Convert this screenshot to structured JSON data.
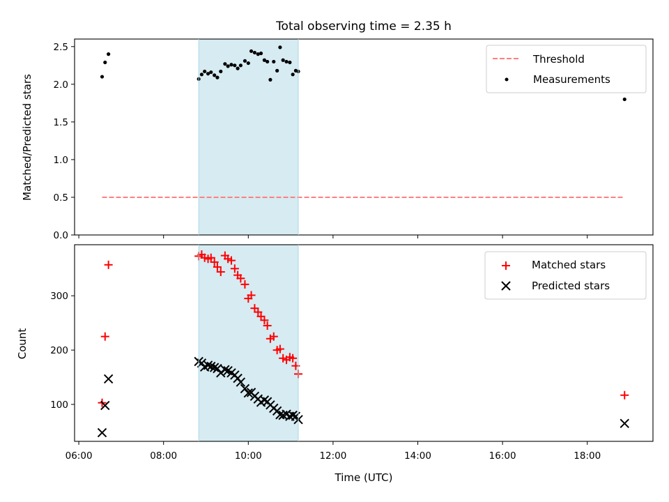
{
  "figure": {
    "title": "Total observing time = 2.35 h",
    "xlabel": "Time (UTC)"
  },
  "chart_data": [
    {
      "type": "scatter",
      "title": "Total observing time = 2.35 h",
      "xlabel": "",
      "ylabel": "Matched/Predicted stars",
      "xlim": [
        5.9,
        19.55
      ],
      "ylim": [
        0,
        2.6
      ],
      "yticks": [
        0,
        0.5,
        1,
        1.5,
        2,
        2.5
      ],
      "ytick_labels": [
        "0.0",
        "0.5",
        "1.0",
        "1.5",
        "2.0",
        "2.5"
      ],
      "shaded_interval": [
        8.83,
        11.18
      ],
      "shade_color": "#add8e6",
      "legend_position": "upper right",
      "series": [
        {
          "name": "Threshold",
          "kind": "line",
          "style": "dashed",
          "color": "#ff7f7f",
          "x": [
            6.55,
            18.88
          ],
          "y": [
            0.5,
            0.5
          ]
        },
        {
          "name": "Measurements",
          "kind": "points",
          "color": "#000000",
          "x": [
            6.55,
            6.62,
            6.7,
            8.83,
            8.9,
            8.97,
            9.05,
            9.12,
            9.2,
            9.27,
            9.35,
            9.45,
            9.52,
            9.6,
            9.68,
            9.75,
            9.82,
            9.92,
            10.0,
            10.07,
            10.15,
            10.23,
            10.3,
            10.38,
            10.45,
            10.52,
            10.6,
            10.68,
            10.75,
            10.82,
            10.9,
            10.98,
            11.05,
            11.12,
            11.18,
            18.88
          ],
          "y": [
            2.1,
            2.29,
            2.4,
            2.07,
            2.13,
            2.17,
            2.14,
            2.16,
            2.12,
            2.09,
            2.17,
            2.27,
            2.24,
            2.26,
            2.25,
            2.21,
            2.25,
            2.31,
            2.28,
            2.44,
            2.42,
            2.4,
            2.41,
            2.32,
            2.3,
            2.06,
            2.3,
            2.18,
            2.49,
            2.32,
            2.3,
            2.29,
            2.13,
            2.18,
            2.17,
            1.8
          ]
        }
      ]
    },
    {
      "type": "scatter",
      "title": "",
      "xlabel": "Time (UTC)",
      "ylabel": "Count",
      "xlim": [
        5.9,
        19.55
      ],
      "ylim": [
        32,
        394
      ],
      "yticks": [
        100,
        200,
        300
      ],
      "ytick_labels": [
        "100",
        "200",
        "300"
      ],
      "xticks": [
        6,
        8,
        10,
        12,
        14,
        16,
        18
      ],
      "xtick_labels": [
        "06:00",
        "08:00",
        "10:00",
        "12:00",
        "14:00",
        "16:00",
        "18:00"
      ],
      "shaded_interval": [
        8.83,
        11.18
      ],
      "shade_color": "#add8e6",
      "legend_position": "upper right",
      "series": [
        {
          "name": "Matched stars",
          "marker": "plus",
          "color": "#ff0000",
          "x": [
            6.55,
            6.62,
            6.7,
            8.83,
            8.9,
            8.97,
            9.05,
            9.12,
            9.2,
            9.27,
            9.35,
            9.45,
            9.52,
            9.6,
            9.68,
            9.75,
            9.82,
            9.92,
            10.0,
            10.07,
            10.15,
            10.23,
            10.3,
            10.38,
            10.45,
            10.52,
            10.6,
            10.68,
            10.75,
            10.82,
            10.9,
            10.98,
            11.05,
            11.12,
            11.18,
            18.88
          ],
          "y": [
            103,
            225,
            357,
            373,
            376,
            370,
            368,
            370,
            362,
            353,
            344,
            374,
            368,
            365,
            350,
            338,
            332,
            321,
            295,
            301,
            277,
            270,
            262,
            255,
            245,
            221,
            225,
            200,
            202,
            185,
            182,
            187,
            185,
            171,
            156,
            117
          ]
        },
        {
          "name": "Predicted stars",
          "marker": "x",
          "color": "#000000",
          "x": [
            6.55,
            6.62,
            6.7,
            8.83,
            8.9,
            8.97,
            9.05,
            9.12,
            9.2,
            9.27,
            9.35,
            9.45,
            9.52,
            9.6,
            9.68,
            9.75,
            9.82,
            9.92,
            10.0,
            10.07,
            10.15,
            10.23,
            10.3,
            10.38,
            10.45,
            10.52,
            10.6,
            10.68,
            10.75,
            10.82,
            10.9,
            10.98,
            11.05,
            11.12,
            11.18,
            18.88
          ],
          "y": [
            48,
            98,
            147,
            179,
            176,
            169,
            172,
            170,
            168,
            166,
            158,
            164,
            162,
            158,
            154,
            148,
            141,
            129,
            121,
            122,
            115,
            110,
            104,
            108,
            105,
            99,
            93,
            88,
            81,
            80,
            82,
            78,
            80,
            78,
            72,
            65
          ]
        }
      ]
    }
  ]
}
